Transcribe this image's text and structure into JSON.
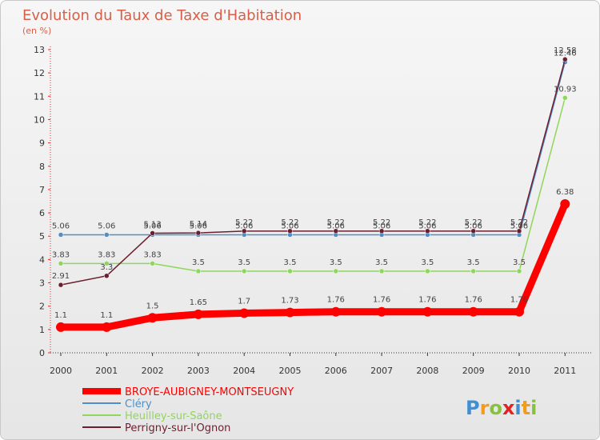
{
  "chart_data": {
    "type": "line",
    "title": "Evolution du Taux de Taxe d'Habitation",
    "subtitle": "(en %)",
    "xlabel": "",
    "ylabel": "",
    "ylim": [
      0,
      13
    ],
    "yticks": [
      "0",
      "1",
      "2",
      "3",
      "4",
      "5",
      "6",
      "7",
      "8",
      "9",
      "10",
      "11",
      "12",
      "13"
    ],
    "categories": [
      "2000",
      "2001",
      "2002",
      "2003",
      "2004",
      "2005",
      "2006",
      "2007",
      "2008",
      "2009",
      "2010",
      "2011"
    ],
    "series": [
      {
        "name": "BROYE-AUBIGNEY-MONTSEUGNY",
        "color": "#ff0000",
        "values": [
          1.1,
          1.1,
          1.5,
          1.65,
          1.7,
          1.73,
          1.76,
          1.76,
          1.76,
          1.76,
          1.76,
          6.38
        ],
        "labels": [
          "1.1",
          "1.1",
          "1.5",
          "1.65",
          "1.7",
          "1.73",
          "1.76",
          "1.76",
          "1.76",
          "1.76",
          "1.76",
          "6.38"
        ]
      },
      {
        "name": "Cléry",
        "color": "#4f8fc7",
        "values": [
          5.06,
          5.06,
          5.06,
          5.06,
          5.06,
          5.06,
          5.06,
          5.06,
          5.06,
          5.06,
          5.06,
          12.46
        ],
        "labels": [
          "5.06",
          "5.06",
          "5.06",
          "5.06",
          "5.06",
          "5.06",
          "5.06",
          "5.06",
          "5.06",
          "5.06",
          "5.06",
          "12.46"
        ]
      },
      {
        "name": "Heuilley-sur-Saône",
        "color": "#8fd65a",
        "values": [
          3.83,
          3.83,
          3.83,
          3.5,
          3.5,
          3.5,
          3.5,
          3.5,
          3.5,
          3.5,
          3.5,
          10.93
        ],
        "labels": [
          "3.83",
          "3.83",
          "3.83",
          "3.5",
          "3.5",
          "3.5",
          "3.5",
          "3.5",
          "3.5",
          "3.5",
          "3.5",
          "10.93"
        ]
      },
      {
        "name": "Perrigny-sur-l'Ognon",
        "color": "#6b1f2e",
        "values": [
          2.91,
          3.3,
          5.13,
          5.14,
          5.22,
          5.22,
          5.22,
          5.22,
          5.22,
          5.22,
          5.22,
          12.58
        ],
        "labels": [
          "2.91",
          "3.3",
          "5.13",
          "5.14",
          "5.22",
          "5.22",
          "5.22",
          "5.22",
          "5.22",
          "5.22",
          "5.22",
          "12.58"
        ]
      }
    ],
    "legend_position": "bottom-left",
    "grid": false
  },
  "watermark": "Proxiti"
}
